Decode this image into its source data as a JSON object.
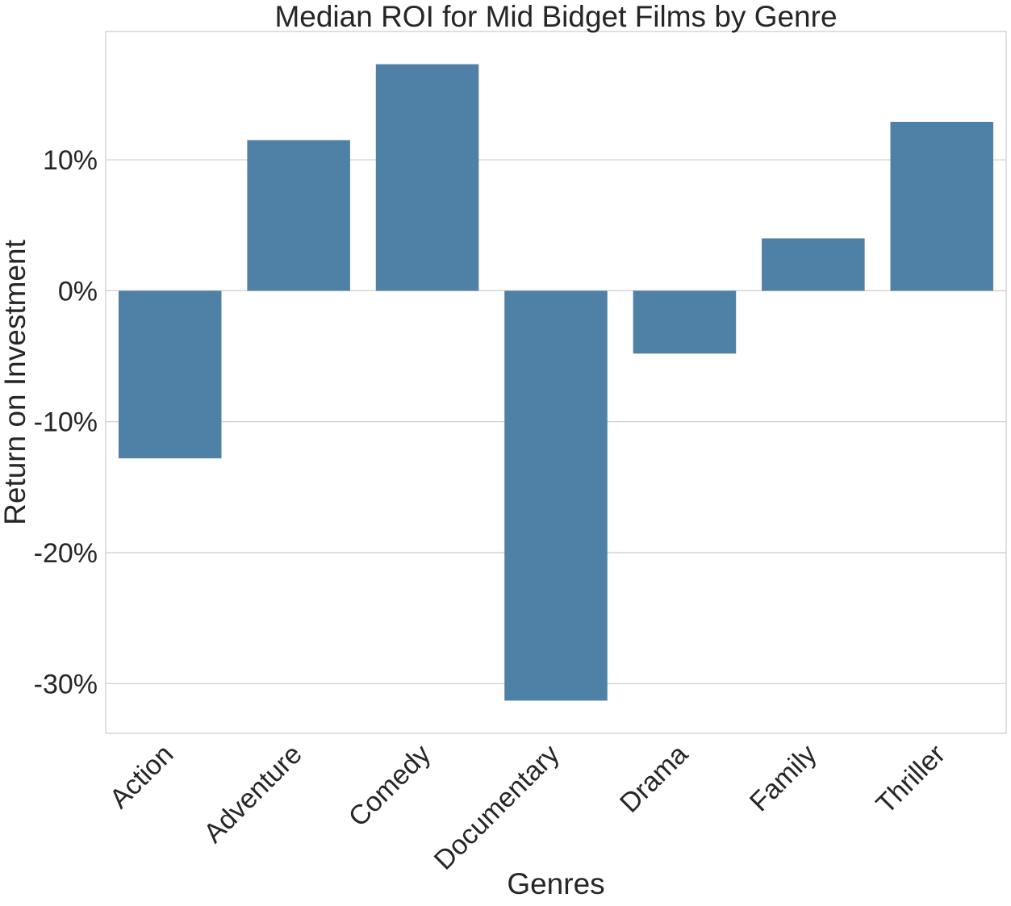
{
  "chart_data": {
    "type": "bar",
    "title": "Median ROI for Mid Bidget Films by Genre",
    "xlabel": "Genres",
    "ylabel": "Return on Investment",
    "categories": [
      "Action",
      "Adventure",
      "Comedy",
      "Documentary",
      "Drama",
      "Family",
      "Thriller"
    ],
    "values": [
      -12.8,
      11.5,
      17.3,
      -31.3,
      -4.8,
      4.0,
      12.9
    ],
    "value_unit": "%",
    "ylim": [
      -33.8,
      19.8
    ],
    "yticks": [
      -30,
      -20,
      -10,
      0,
      10
    ],
    "ytick_labels": [
      "-30%",
      "-20%",
      "-10%",
      "0%",
      "10%"
    ],
    "grid": "horizontal",
    "bar_color": "#4f81a6",
    "legend": "none"
  }
}
